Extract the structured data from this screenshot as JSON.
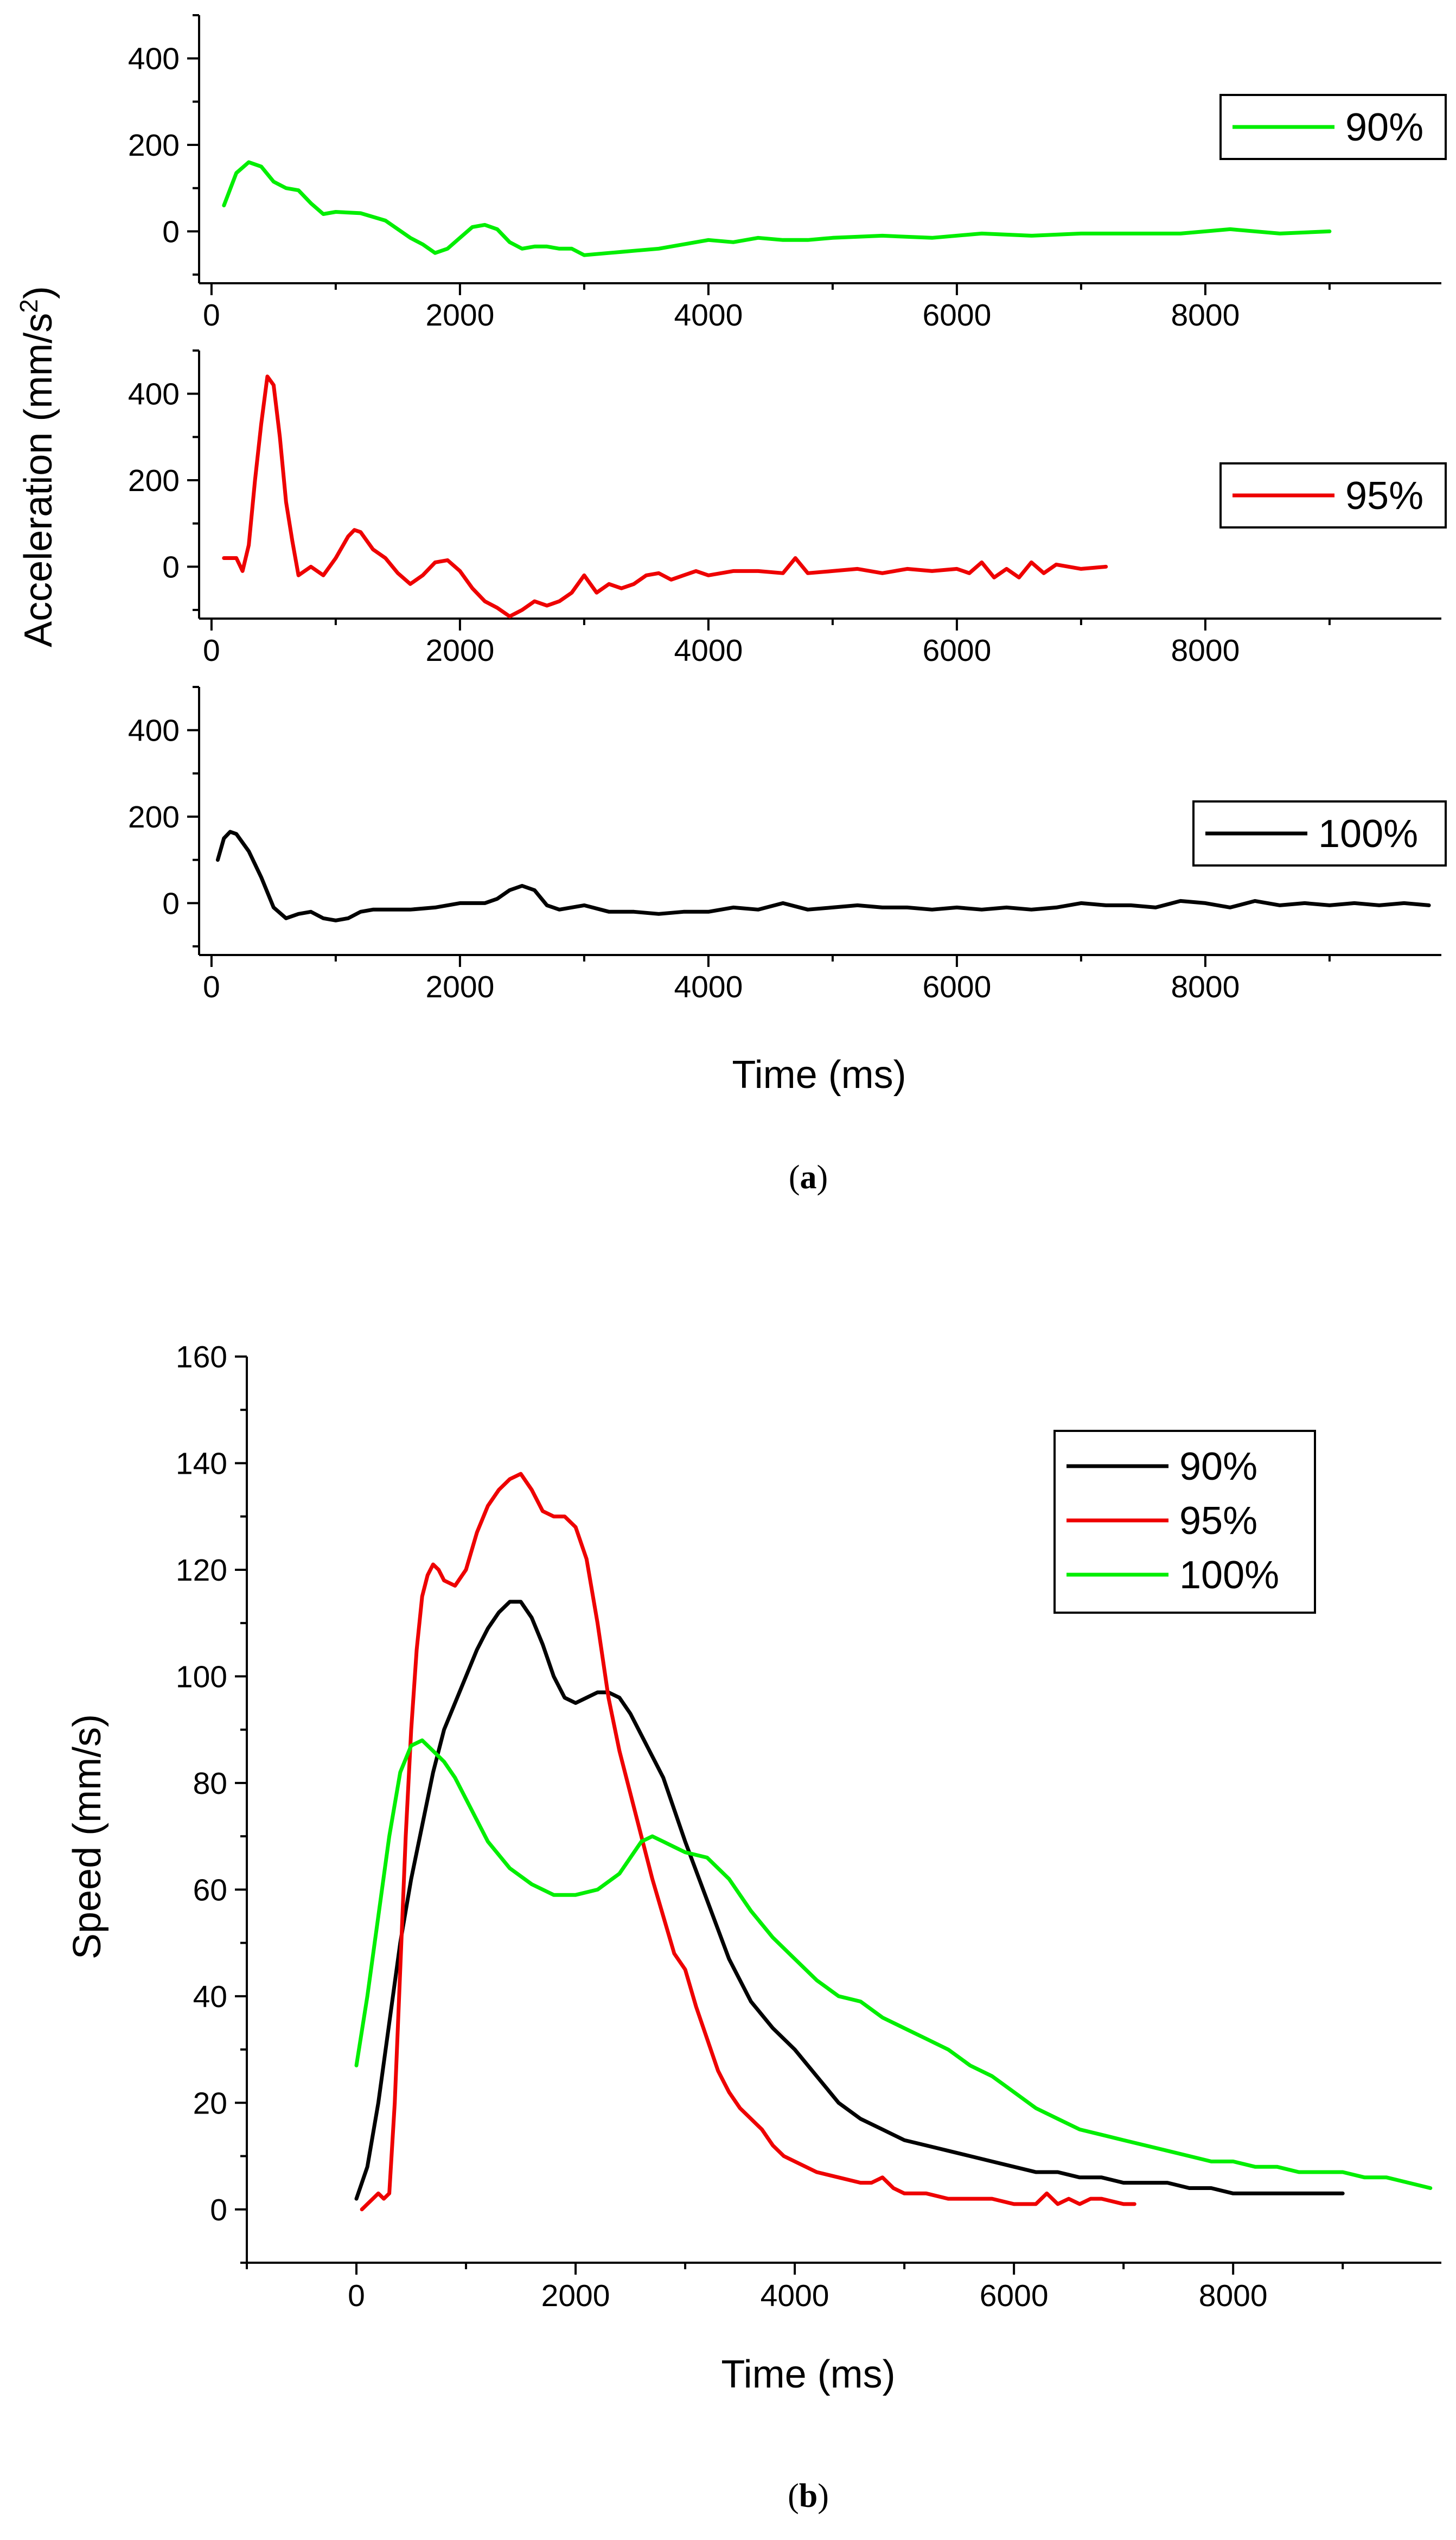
{
  "figure_a": {
    "caption_letter": "a",
    "ylabel_main": "Acceleration (mm/s",
    "ylabel_sup": "2",
    "ylabel_end": ")",
    "xlabel": "Time (ms)",
    "xlim": [
      -100,
      9900
    ],
    "ylim": [
      -120,
      500
    ]
  },
  "figure_b": {
    "caption_letter": "b",
    "xlabel": "Time (ms)",
    "ylabel": "Speed (mm/s)",
    "xlim": [
      -1000,
      9900
    ],
    "ylim": [
      -10,
      160
    ]
  },
  "chart_data": [
    {
      "type": "line",
      "panel": "a-top",
      "xlabel": "Time (ms)",
      "ylabel": "Acceleration (mm/s2)",
      "xlim": [
        -100,
        9900
      ],
      "ylim": [
        -120,
        500
      ],
      "xticks": [
        0,
        2000,
        4000,
        6000,
        8000
      ],
      "yticks": [
        0,
        200,
        400
      ],
      "legend_position": "right",
      "series": [
        {
          "name": "90%",
          "color": "#00ee00",
          "x": [
            100,
            200,
            300,
            400,
            500,
            600,
            700,
            800,
            900,
            1000,
            1200,
            1400,
            1500,
            1600,
            1700,
            1800,
            1900,
            2000,
            2100,
            2200,
            2300,
            2400,
            2500,
            2600,
            2700,
            2800,
            2900,
            3000,
            3200,
            3400,
            3600,
            3800,
            4000,
            4200,
            4400,
            4600,
            4800,
            5000,
            5400,
            5800,
            6200,
            6600,
            7000,
            7400,
            7800,
            8200,
            8600,
            9000
          ],
          "y": [
            60,
            135,
            160,
            150,
            115,
            100,
            95,
            65,
            40,
            45,
            42,
            25,
            5,
            -15,
            -30,
            -50,
            -40,
            -15,
            10,
            15,
            5,
            -25,
            -40,
            -35,
            -35,
            -40,
            -40,
            -55,
            -50,
            -45,
            -40,
            -30,
            -20,
            -25,
            -15,
            -20,
            -20,
            -15,
            -10,
            -15,
            -5,
            -10,
            -5,
            -5,
            -5,
            5,
            -5,
            0
          ]
        }
      ]
    },
    {
      "type": "line",
      "panel": "a-middle",
      "xlabel": "Time (ms)",
      "ylabel": "Acceleration (mm/s2)",
      "xlim": [
        -100,
        9900
      ],
      "ylim": [
        -120,
        500
      ],
      "xticks": [
        0,
        2000,
        4000,
        6000,
        8000
      ],
      "yticks": [
        0,
        200,
        400
      ],
      "legend_position": "right",
      "series": [
        {
          "name": "95%",
          "color": "#ee0000",
          "x": [
            100,
            200,
            250,
            300,
            350,
            400,
            450,
            500,
            550,
            600,
            650,
            700,
            800,
            900,
            1000,
            1100,
            1150,
            1200,
            1300,
            1400,
            1500,
            1600,
            1700,
            1800,
            1900,
            2000,
            2100,
            2200,
            2300,
            2400,
            2500,
            2600,
            2700,
            2800,
            2900,
            3000,
            3100,
            3200,
            3300,
            3400,
            3500,
            3600,
            3700,
            3800,
            3900,
            4000,
            4200,
            4400,
            4600,
            4700,
            4800,
            5000,
            5200,
            5400,
            5600,
            5800,
            6000,
            6100,
            6200,
            6300,
            6400,
            6500,
            6600,
            6700,
            6800,
            7000,
            7200
          ],
          "y": [
            20,
            20,
            -10,
            50,
            200,
            330,
            440,
            420,
            300,
            150,
            60,
            -20,
            0,
            -20,
            20,
            70,
            85,
            80,
            40,
            20,
            -15,
            -40,
            -20,
            10,
            15,
            -10,
            -50,
            -80,
            -95,
            -115,
            -100,
            -80,
            -90,
            -80,
            -60,
            -20,
            -60,
            -40,
            -50,
            -40,
            -20,
            -15,
            -30,
            -20,
            -10,
            -20,
            -10,
            -10,
            -15,
            20,
            -15,
            -10,
            -5,
            -15,
            -5,
            -10,
            -5,
            -15,
            10,
            -25,
            -5,
            -25,
            10,
            -15,
            5,
            -5,
            0
          ]
        }
      ]
    },
    {
      "type": "line",
      "panel": "a-bottom",
      "xlabel": "Time (ms)",
      "ylabel": "Acceleration (mm/s2)",
      "xlim": [
        -100,
        9900
      ],
      "ylim": [
        -120,
        500
      ],
      "xticks": [
        0,
        2000,
        4000,
        6000,
        8000
      ],
      "yticks": [
        0,
        200,
        400
      ],
      "legend_position": "right",
      "series": [
        {
          "name": "100%",
          "color": "#000000",
          "x": [
            50,
            100,
            150,
            200,
            300,
            400,
            500,
            600,
            700,
            800,
            900,
            1000,
            1100,
            1200,
            1300,
            1400,
            1600,
            1800,
            2000,
            2200,
            2300,
            2400,
            2500,
            2600,
            2700,
            2800,
            3000,
            3200,
            3400,
            3600,
            3800,
            4000,
            4200,
            4400,
            4600,
            4800,
            5000,
            5200,
            5400,
            5600,
            5800,
            6000,
            6200,
            6400,
            6600,
            6800,
            7000,
            7200,
            7400,
            7600,
            7800,
            8000,
            8200,
            8400,
            8600,
            8800,
            9000,
            9200,
            9400,
            9600,
            9800
          ],
          "y": [
            100,
            150,
            165,
            160,
            120,
            60,
            -10,
            -35,
            -25,
            -20,
            -35,
            -40,
            -35,
            -20,
            -15,
            -15,
            -15,
            -10,
            0,
            0,
            10,
            30,
            40,
            30,
            -5,
            -15,
            -5,
            -20,
            -20,
            -25,
            -20,
            -20,
            -10,
            -15,
            0,
            -15,
            -10,
            -5,
            -10,
            -10,
            -15,
            -10,
            -15,
            -10,
            -15,
            -10,
            0,
            -5,
            -5,
            -10,
            5,
            0,
            -10,
            5,
            -5,
            0,
            -5,
            0,
            -5,
            0,
            -5
          ]
        }
      ]
    },
    {
      "type": "line",
      "panel": "b",
      "xlabel": "Time (ms)",
      "ylabel": "Speed (mm/s)",
      "xlim": [
        -1000,
        9900
      ],
      "ylim": [
        -10,
        160
      ],
      "xticks": [
        0,
        2000,
        4000,
        6000,
        8000
      ],
      "yticks": [
        0,
        20,
        40,
        60,
        80,
        100,
        120,
        140,
        160
      ],
      "legend_position": "top-right",
      "series": [
        {
          "name": "90%",
          "color": "#000000",
          "x": [
            0,
            100,
            200,
            300,
            400,
            500,
            600,
            700,
            800,
            900,
            1000,
            1100,
            1200,
            1300,
            1400,
            1500,
            1600,
            1700,
            1800,
            1900,
            2000,
            2100,
            2200,
            2300,
            2400,
            2500,
            2600,
            2700,
            2800,
            2900,
            3000,
            3200,
            3400,
            3600,
            3800,
            4000,
            4200,
            4400,
            4600,
            4800,
            5000,
            5200,
            5400,
            5600,
            5800,
            6000,
            6200,
            6400,
            6600,
            6800,
            7000,
            7200,
            7400,
            7600,
            7800,
            8000,
            8200,
            8400,
            8600,
            8800,
            9000
          ],
          "y": [
            2,
            8,
            20,
            35,
            50,
            62,
            72,
            82,
            90,
            95,
            100,
            105,
            109,
            112,
            114,
            114,
            111,
            106,
            100,
            96,
            95,
            96,
            97,
            97,
            96,
            93,
            89,
            85,
            81,
            75,
            69,
            58,
            47,
            39,
            34,
            30,
            25,
            20,
            17,
            15,
            13,
            12,
            11,
            10,
            9,
            8,
            7,
            7,
            6,
            6,
            5,
            5,
            5,
            4,
            4,
            3,
            3,
            3,
            3,
            3,
            3
          ]
        },
        {
          "name": "95%",
          "color": "#ee0000",
          "x": [
            50,
            100,
            150,
            200,
            250,
            300,
            350,
            400,
            450,
            500,
            550,
            600,
            650,
            700,
            750,
            800,
            900,
            1000,
            1100,
            1200,
            1300,
            1400,
            1500,
            1600,
            1700,
            1800,
            1900,
            2000,
            2100,
            2200,
            2300,
            2400,
            2500,
            2600,
            2700,
            2800,
            2900,
            3000,
            3100,
            3200,
            3300,
            3400,
            3500,
            3600,
            3700,
            3800,
            3900,
            4000,
            4200,
            4400,
            4600,
            4700,
            4800,
            4900,
            5000,
            5200,
            5400,
            5600,
            5800,
            6000,
            6200,
            6300,
            6400,
            6500,
            6600,
            6700,
            6800,
            7000,
            7100
          ],
          "y": [
            0,
            1,
            2,
            3,
            2,
            3,
            20,
            45,
            70,
            90,
            105,
            115,
            119,
            121,
            120,
            118,
            117,
            120,
            127,
            132,
            135,
            137,
            138,
            135,
            131,
            130,
            130,
            128,
            122,
            110,
            96,
            86,
            78,
            70,
            62,
            55,
            48,
            45,
            38,
            32,
            26,
            22,
            19,
            17,
            15,
            12,
            10,
            9,
            7,
            6,
            5,
            5,
            6,
            4,
            3,
            3,
            2,
            2,
            2,
            1,
            1,
            3,
            1,
            2,
            1,
            2,
            2,
            1,
            1
          ]
        },
        {
          "name": "100%",
          "color": "#00ee00",
          "x": [
            0,
            100,
            200,
            300,
            400,
            500,
            600,
            700,
            800,
            900,
            1000,
            1200,
            1400,
            1600,
            1800,
            2000,
            2200,
            2400,
            2500,
            2600,
            2700,
            2800,
            2900,
            3000,
            3200,
            3400,
            3600,
            3800,
            4000,
            4200,
            4400,
            4600,
            4800,
            5000,
            5200,
            5400,
            5600,
            5800,
            6000,
            6200,
            6400,
            6600,
            6800,
            7000,
            7200,
            7400,
            7600,
            7800,
            8000,
            8200,
            8400,
            8600,
            8800,
            9000,
            9200,
            9400,
            9600,
            9800
          ],
          "y": [
            27,
            40,
            55,
            70,
            82,
            87,
            88,
            86,
            84,
            81,
            77,
            69,
            64,
            61,
            59,
            59,
            60,
            63,
            66,
            69,
            70,
            69,
            68,
            67,
            66,
            62,
            56,
            51,
            47,
            43,
            40,
            39,
            36,
            34,
            32,
            30,
            27,
            25,
            22,
            19,
            17,
            15,
            14,
            13,
            12,
            11,
            10,
            9,
            9,
            8,
            8,
            7,
            7,
            7,
            6,
            6,
            5,
            4
          ]
        }
      ]
    }
  ]
}
